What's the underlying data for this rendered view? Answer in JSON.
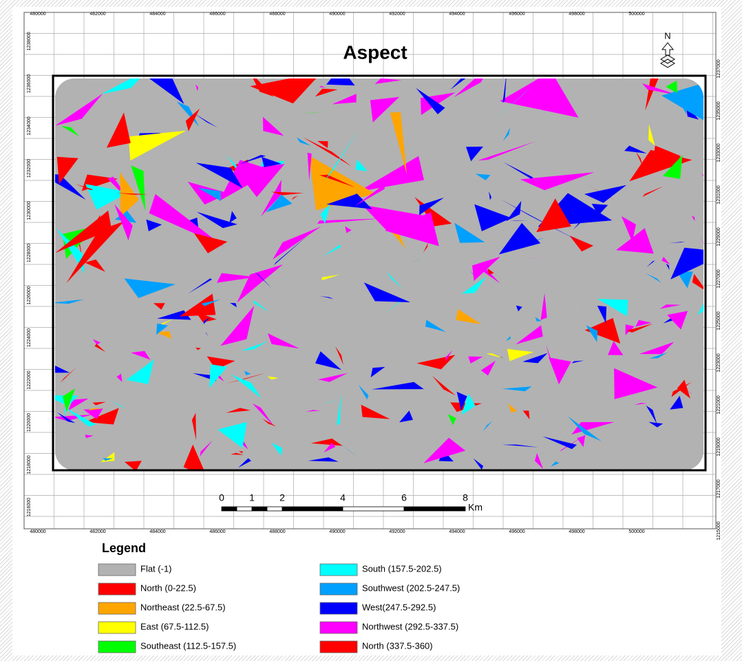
{
  "header": {
    "title": "Aspect"
  },
  "x_labels": [
    "480000",
    "482000",
    "484000",
    "486000",
    "488000",
    "490000",
    "492000",
    "494000",
    "496000",
    "498000",
    "500000"
  ],
  "y_labels_left": [
    "1238000",
    "1236000",
    "1234000",
    "1232000",
    "1230000",
    "1228000",
    "1226000",
    "1224000",
    "1222000",
    "1220000",
    "1218000",
    "1216000"
  ],
  "y_labels_right": [
    "1237000",
    "1235000",
    "1233000",
    "1231000",
    "1229000",
    "1227000",
    "1225000",
    "1223000",
    "1221000",
    "1219000",
    "1217000",
    "1215000"
  ],
  "north_arrow": "N",
  "scale_bar": {
    "labels": [
      "0",
      "1",
      "2",
      "4",
      "6",
      "8"
    ],
    "unit": "Km"
  },
  "legend": {
    "title": "Legend",
    "items": [
      {
        "label": "Flat (-1)",
        "color": "#b2b2b2"
      },
      {
        "label": "North (0-22.5)",
        "color": "#ff0000"
      },
      {
        "label": "Northeast (22.5-67.5)",
        "color": "#ffa500"
      },
      {
        "label": "East (67.5-112.5)",
        "color": "#ffff00"
      },
      {
        "label": "Southeast (112.5-157.5)",
        "color": "#00ff00"
      },
      {
        "label": "South (157.5-202.5)",
        "color": "#00ffff"
      },
      {
        "label": "Southwest (202.5-247.5)",
        "color": "#00a0ff"
      },
      {
        "label": "West(247.5-292.5)",
        "color": "#0000ff"
      },
      {
        "label": "Northwest (292.5-337.5)",
        "color": "#ff00ff"
      },
      {
        "label": "North (337.5-360)",
        "color": "#ff0000"
      }
    ]
  }
}
